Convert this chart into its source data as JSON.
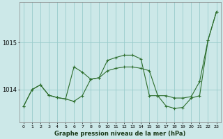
{
  "background_color": "#cce8e8",
  "grid_color": "#99cccc",
  "line_color": "#2d6e2d",
  "x_values": [
    0,
    1,
    2,
    3,
    4,
    5,
    6,
    7,
    8,
    9,
    10,
    11,
    12,
    13,
    14,
    15,
    16,
    17,
    18,
    19,
    20,
    21,
    22,
    23
  ],
  "line1_y": [
    1013.65,
    1014.0,
    1014.1,
    1013.88,
    1013.83,
    1013.8,
    1014.48,
    1014.37,
    1014.22,
    1014.25,
    1014.62,
    1014.68,
    1014.73,
    1014.73,
    1014.65,
    1013.87,
    1013.87,
    1013.65,
    1013.6,
    1013.62,
    1013.82,
    1013.87,
    1015.05,
    1015.65
  ],
  "line2_y": [
    1013.65,
    1014.0,
    1014.1,
    1013.88,
    1013.83,
    1013.8,
    1013.75,
    1013.87,
    1014.22,
    1014.25,
    1014.4,
    1014.45,
    1014.48,
    1014.48,
    1014.45,
    1014.4,
    1013.87,
    1013.87,
    1013.82,
    1013.82,
    1013.85,
    1014.17,
    1015.05,
    1015.65
  ],
  "ylim": [
    1013.3,
    1015.85
  ],
  "yticks": [
    1014,
    1015
  ],
  "xlim": [
    -0.5,
    23.5
  ],
  "xlabel": "Graphe pression niveau de la mer (hPa)"
}
